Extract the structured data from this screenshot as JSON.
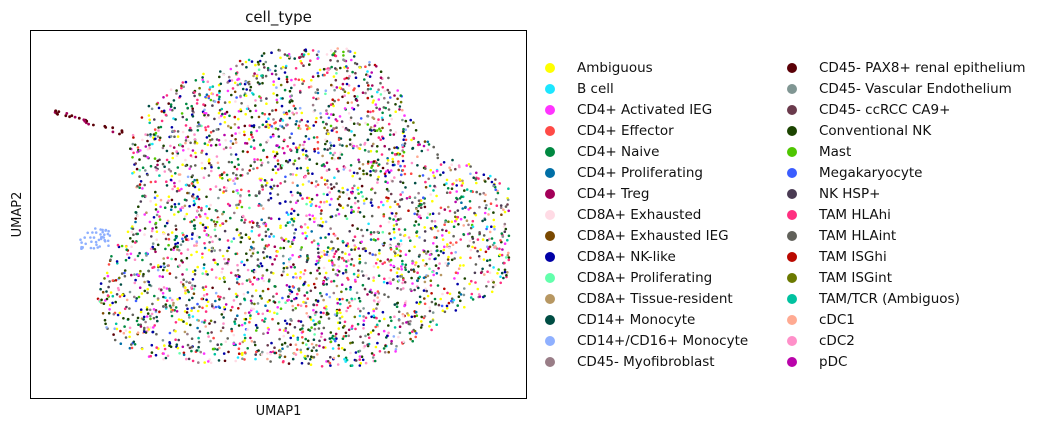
{
  "chart_data": {
    "type": "scatter",
    "title": "cell_type",
    "xlabel": "UMAP1",
    "ylabel": "UMAP2",
    "ticks": "none",
    "grid": false,
    "legend_position": "right, two columns",
    "series": [
      {
        "name": "Ambiguous",
        "color": "#ffff00"
      },
      {
        "name": "B cell",
        "color": "#1ce6ff"
      },
      {
        "name": "CD4+ Activated IEG",
        "color": "#ff34ff"
      },
      {
        "name": "CD4+ Effector",
        "color": "#ff4a46"
      },
      {
        "name": "CD4+ Naive",
        "color": "#008941"
      },
      {
        "name": "CD4+ Proliferating",
        "color": "#006fa6"
      },
      {
        "name": "CD4+ Treg",
        "color": "#a30059"
      },
      {
        "name": "CD8A+ Exhausted",
        "color": "#ffdbe5"
      },
      {
        "name": "CD8A+ Exhausted IEG",
        "color": "#7a4900"
      },
      {
        "name": "CD8A+ NK-like",
        "color": "#0000a6"
      },
      {
        "name": "CD8A+ Proliferating",
        "color": "#63ffac"
      },
      {
        "name": "CD8A+ Tissue-resident",
        "color": "#b79762"
      },
      {
        "name": "CD14+ Monocyte",
        "color": "#004d43"
      },
      {
        "name": "CD14+/CD16+ Monocyte",
        "color": "#8fb0ff"
      },
      {
        "name": "CD45- Myofibroblast",
        "color": "#997d87"
      },
      {
        "name": "CD45- PAX8+ renal epithelium",
        "color": "#5a0007"
      },
      {
        "name": "CD45- Vascular Endothelium",
        "color": "#809693"
      },
      {
        "name": "CD45- ccRCC CA9+",
        "color": "#6a3a4c"
      },
      {
        "name": "Conventional NK",
        "color": "#1b4400"
      },
      {
        "name": "Mast",
        "color": "#4fc601"
      },
      {
        "name": "Megakaryocyte",
        "color": "#3b5dff"
      },
      {
        "name": "NK HSP+",
        "color": "#4a3b53"
      },
      {
        "name": "TAM HLAhi",
        "color": "#ff2f80"
      },
      {
        "name": "TAM HLAint",
        "color": "#61615a"
      },
      {
        "name": "TAM ISGhi",
        "color": "#ba0900"
      },
      {
        "name": "TAM ISGint",
        "color": "#6b7900"
      },
      {
        "name": "TAM/TCR (Ambiguos)",
        "color": "#00c2a0"
      },
      {
        "name": "cDC1",
        "color": "#ffaa92"
      },
      {
        "name": "cDC2",
        "color": "#ff90c9"
      },
      {
        "name": "pDC",
        "color": "#b903aa"
      }
    ]
  }
}
